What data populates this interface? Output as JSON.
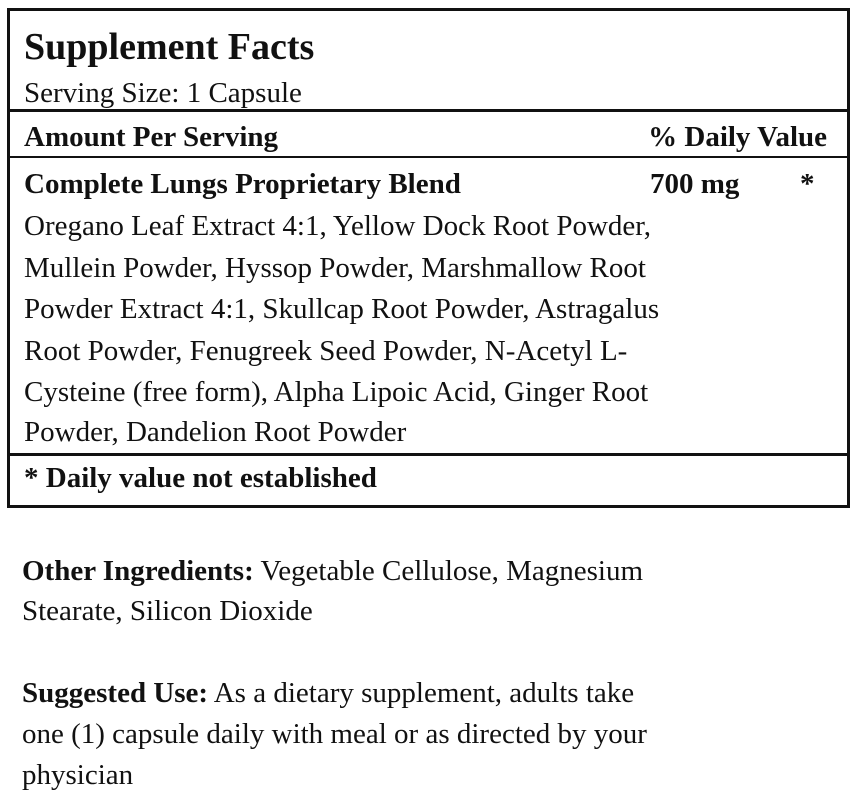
{
  "facts": {
    "title": "Supplement Facts",
    "serving_size": "Serving Size: 1 Capsule",
    "header_left": "Amount Per Serving",
    "header_right": "% Daily Value",
    "blend_name": "Complete Lungs Proprietary Blend",
    "blend_amount": "700 mg",
    "blend_dv": "*",
    "ingredient_lines": [
      "Oregano Leaf Extract 4:1, Yellow Dock Root Powder,",
      "Mullein Powder, Hyssop Powder, Marshmallow Root",
      "Powder Extract 4:1, Skullcap Root Powder, Astragalus",
      "Root Powder, Fenugreek Seed Powder, N-Acetyl L-",
      "Cysteine (free form), Alpha Lipoic Acid, Ginger Root",
      "Powder, Dandelion Root Powder"
    ],
    "footnote": "* Daily value not established"
  },
  "other_ingredients": {
    "label": "Other Ingredients:",
    "lines": [
      " Vegetable Cellulose, Magnesium",
      "Stearate, Silicon Dioxide"
    ]
  },
  "suggested_use": {
    "label": "Suggested Use:",
    "lines": [
      " As a dietary supplement, adults take",
      "one (1) capsule daily with meal or as directed by your",
      "physician"
    ]
  }
}
